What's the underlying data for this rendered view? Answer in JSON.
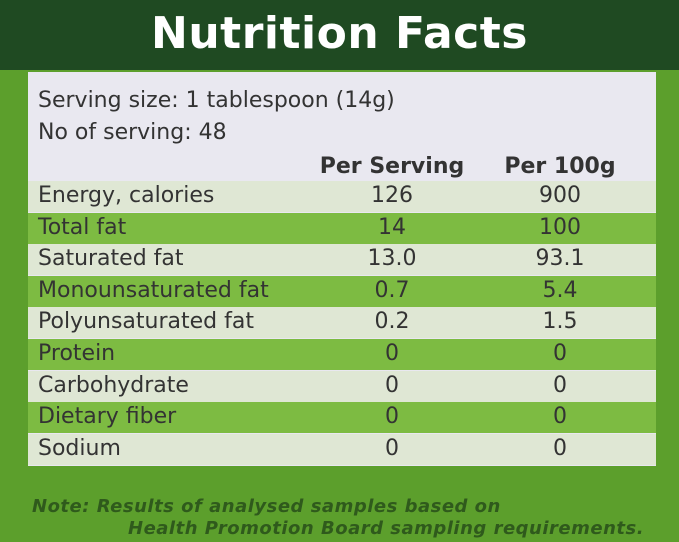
{
  "header": {
    "title": "Nutrition Facts"
  },
  "serving": {
    "size": "Serving size: 1 tablespoon (14g)",
    "count": "No of serving: 48"
  },
  "table": {
    "columns": [
      "Per Serving",
      "Per 100g"
    ],
    "rows": [
      [
        "Energy, calories",
        "126",
        "900"
      ],
      [
        "Total fat",
        "14",
        "100"
      ],
      [
        "Saturated fat",
        "13.0",
        "93.1"
      ],
      [
        "Monounsaturated fat",
        "0.7",
        "5.4"
      ],
      [
        "Polyunsaturated fat",
        "0.2",
        "1.5"
      ],
      [
        "Protein",
        "0",
        "0"
      ],
      [
        "Carbohydrate",
        "0",
        "0"
      ],
      [
        "Dietary fiber",
        "0",
        "0"
      ],
      [
        "Sodium",
        "0",
        "0"
      ]
    ]
  },
  "note": [
    "Note: Results of analysed samples based on",
    "Health Promotion Board sampling requirements."
  ]
}
